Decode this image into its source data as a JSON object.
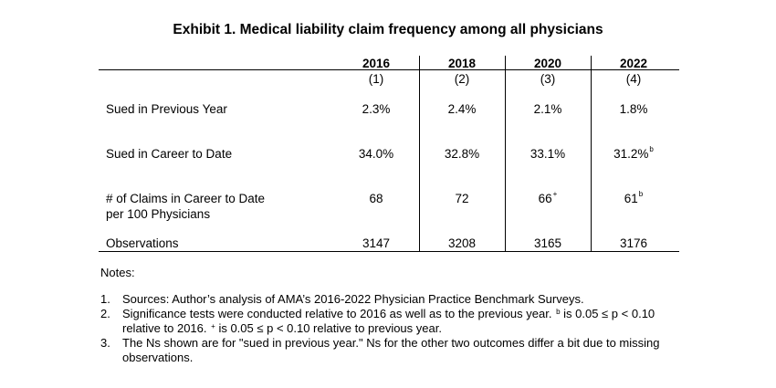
{
  "title": "Exhibit 1. Medical liability claim frequency among all physicians",
  "columns": [
    {
      "year": "2016",
      "num": "(1)"
    },
    {
      "year": "2018",
      "num": "(2)"
    },
    {
      "year": "2020",
      "num": "(3)"
    },
    {
      "year": "2022",
      "num": "(4)"
    }
  ],
  "rows": [
    {
      "label": "Sued in Previous Year",
      "values": [
        "2.3%",
        "2.4%",
        "2.1%",
        "1.8%"
      ],
      "sups": [
        "",
        "",
        "",
        ""
      ]
    },
    {
      "label": "Sued in Career to Date",
      "values": [
        "34.0%",
        "32.8%",
        "33.1%",
        "31.2%"
      ],
      "sups": [
        "",
        "",
        "",
        "b"
      ]
    },
    {
      "label_line1": "# of Claims in Career to Date",
      "label_line2": "per 100 Physicians",
      "values": [
        "68",
        "72",
        "66",
        "61"
      ],
      "sups": [
        "",
        "",
        "+",
        "b"
      ]
    },
    {
      "label": "Observations",
      "values": [
        "3147",
        "3208",
        "3165",
        "3176"
      ],
      "sups": [
        "",
        "",
        "",
        ""
      ]
    }
  ],
  "notes": {
    "label": "Notes:",
    "items": [
      {
        "num": "1.",
        "text": "Sources: Author’s analysis of AMA’s 2016-2022 Physician Practice Benchmark Surveys."
      },
      {
        "num": "2.",
        "line1": "Significance tests were conducted relative to 2016 as well as to the previous year.",
        "sup_b": "b",
        "line1_tail": "is 0.05 ≤ p < 0.10",
        "line2": "relative to 2016.",
        "sup_plus": "+",
        "line2_tail": "is 0.05 ≤ p < 0.10 relative to previous year."
      },
      {
        "num": "3.",
        "line1": "The Ns shown are for \"sued in previous year.\" Ns for the other two outcomes differ a bit due to missing",
        "line2": "observations."
      }
    ]
  }
}
